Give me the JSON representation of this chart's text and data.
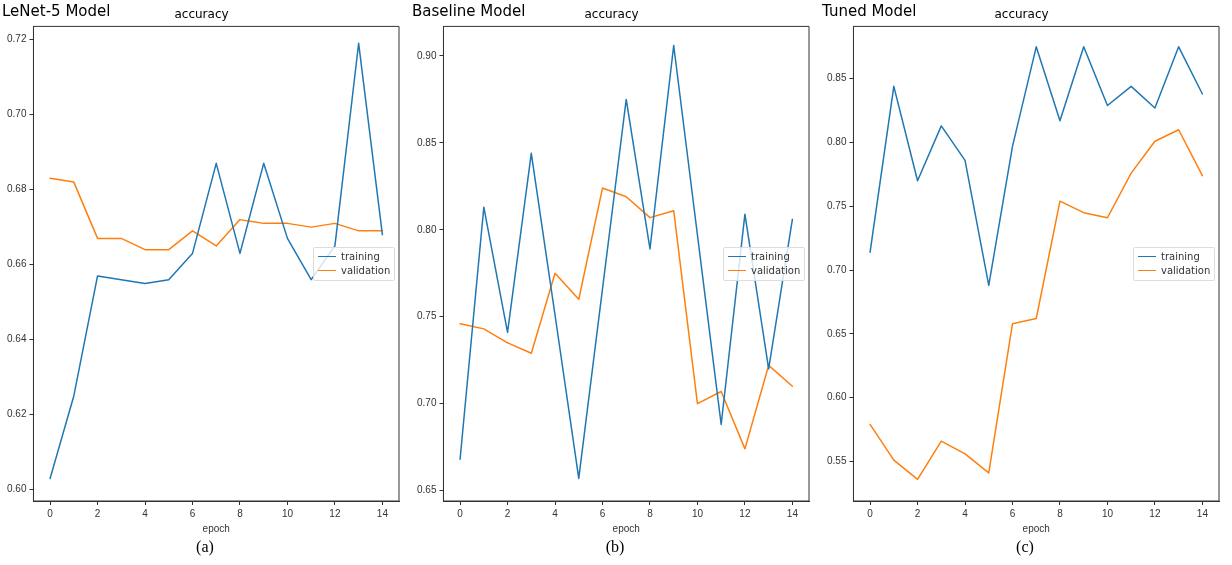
{
  "chart_data": [
    {
      "type": "line",
      "title": "accuracy",
      "xlabel": "epoch",
      "annotations": [
        "LeNet-5 Model",
        "(a)"
      ],
      "x": [
        0,
        1,
        2,
        3,
        4,
        5,
        6,
        7,
        8,
        9,
        10,
        11,
        12,
        13,
        14
      ],
      "xlim": [
        -0.7,
        14.7
      ],
      "xticks": [
        0,
        2,
        4,
        6,
        8,
        10,
        12,
        14
      ],
      "ylim": [
        0.597,
        0.7235
      ],
      "yticks": [
        {
          "value": 0.6,
          "label": "0.60"
        },
        {
          "value": 0.62,
          "label": "0.62"
        },
        {
          "value": 0.64,
          "label": "0.64"
        },
        {
          "value": 0.66,
          "label": "0.66"
        },
        {
          "value": 0.68,
          "label": "0.68"
        },
        {
          "value": 0.7,
          "label": "0.70"
        },
        {
          "value": 0.72,
          "label": "0.72"
        }
      ],
      "grid": false,
      "legend": "right",
      "marker": "none",
      "line_style": "solid",
      "series": [
        {
          "name": "training",
          "color": "#1f77b4",
          "values": [
            0.603,
            0.625,
            0.657,
            0.656,
            0.655,
            0.656,
            0.663,
            0.687,
            0.663,
            0.687,
            0.667,
            0.656,
            0.665,
            0.719,
            0.668
          ]
        },
        {
          "name": "validation",
          "color": "#ff7f0e",
          "values": [
            0.683,
            0.682,
            0.667,
            0.667,
            0.664,
            0.664,
            0.669,
            0.665,
            0.672,
            0.671,
            0.671,
            0.67,
            0.671,
            0.669,
            0.669
          ]
        }
      ]
    },
    {
      "type": "line",
      "title": "accuracy",
      "xlabel": "epoch",
      "annotations": [
        "Baseline Model",
        "(b)"
      ],
      "x": [
        0,
        1,
        2,
        3,
        4,
        5,
        6,
        7,
        8,
        9,
        10,
        11,
        12,
        13,
        14
      ],
      "xlim": [
        -0.7,
        14.7
      ],
      "xticks": [
        0,
        2,
        4,
        6,
        8,
        10,
        12,
        14
      ],
      "ylim": [
        0.644,
        0.917
      ],
      "yticks": [
        {
          "value": 0.65,
          "label": "0.65"
        },
        {
          "value": 0.7,
          "label": "0.70"
        },
        {
          "value": 0.75,
          "label": "0.75"
        },
        {
          "value": 0.8,
          "label": "0.80"
        },
        {
          "value": 0.85,
          "label": "0.85"
        },
        {
          "value": 0.9,
          "label": "0.90"
        }
      ],
      "grid": false,
      "legend": "right",
      "marker": "none",
      "line_style": "solid",
      "series": [
        {
          "name": "training",
          "color": "#1f77b4",
          "values": [
            0.668,
            0.813,
            0.741,
            0.844,
            0.751,
            0.657,
            0.766,
            0.875,
            0.789,
            0.906,
            0.797,
            0.688,
            0.809,
            0.72,
            0.806
          ]
        },
        {
          "name": "validation",
          "color": "#ff7f0e",
          "values": [
            0.746,
            0.743,
            0.735,
            0.729,
            0.775,
            0.76,
            0.824,
            0.819,
            0.807,
            0.811,
            0.7,
            0.707,
            0.674,
            0.722,
            0.71
          ]
        }
      ]
    },
    {
      "type": "line",
      "title": "accuracy",
      "xlabel": "epoch",
      "annotations": [
        "Tuned Model",
        "(c)"
      ],
      "x": [
        0,
        1,
        2,
        3,
        4,
        5,
        6,
        7,
        8,
        9,
        10,
        11,
        12,
        13,
        14
      ],
      "xlim": [
        -0.7,
        14.7
      ],
      "xticks": [
        0,
        2,
        4,
        6,
        8,
        10,
        12,
        14
      ],
      "ylim": [
        0.519,
        0.891
      ],
      "yticks": [
        {
          "value": 0.55,
          "label": "0.55"
        },
        {
          "value": 0.6,
          "label": "0.60"
        },
        {
          "value": 0.65,
          "label": "0.65"
        },
        {
          "value": 0.7,
          "label": "0.70"
        },
        {
          "value": 0.75,
          "label": "0.75"
        },
        {
          "value": 0.8,
          "label": "0.80"
        },
        {
          "value": 0.85,
          "label": "0.85"
        }
      ],
      "grid": false,
      "legend": "right",
      "marker": "none",
      "line_style": "solid",
      "series": [
        {
          "name": "training",
          "color": "#1f77b4",
          "values": [
            0.714,
            0.844,
            0.77,
            0.813,
            0.786,
            0.688,
            0.797,
            0.875,
            0.817,
            0.875,
            0.829,
            0.844,
            0.827,
            0.875,
            0.838
          ]
        },
        {
          "name": "validation",
          "color": "#ff7f0e",
          "values": [
            0.579,
            0.551,
            0.536,
            0.566,
            0.556,
            0.541,
            0.658,
            0.662,
            0.754,
            0.745,
            0.741,
            0.776,
            0.801,
            0.81,
            0.774
          ]
        }
      ]
    }
  ]
}
